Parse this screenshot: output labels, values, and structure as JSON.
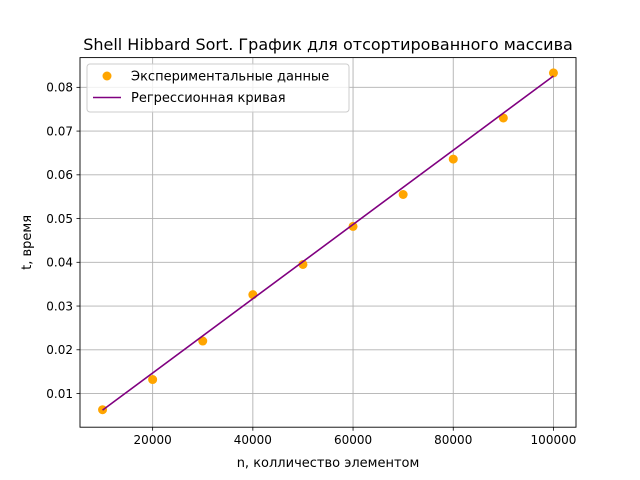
{
  "chart_data": {
    "type": "scatter",
    "title": "Shell Hibbard Sort. График для отсортированного массива",
    "xlabel": "n, колличество элементом",
    "ylabel": "t, время",
    "xlim": [
      5500,
      104500
    ],
    "ylim": [
      0.0023,
      0.0868
    ],
    "x_ticks": [
      20000,
      40000,
      60000,
      80000,
      100000
    ],
    "x_tick_labels": [
      "20000",
      "40000",
      "60000",
      "80000",
      "100000"
    ],
    "y_ticks": [
      0.01,
      0.02,
      0.03,
      0.04,
      0.05,
      0.06,
      0.07,
      0.08
    ],
    "y_tick_labels": [
      "0.01",
      "0.02",
      "0.03",
      "0.04",
      "0.05",
      "0.06",
      "0.07",
      "0.08"
    ],
    "grid": true,
    "legend_position": "top-left",
    "series": [
      {
        "name": "Экспериментальные данные",
        "kind": "scatter",
        "color": "#ffa500",
        "x": [
          10000,
          20000,
          30000,
          40000,
          50000,
          60000,
          70000,
          80000,
          90000,
          100000
        ],
        "y": [
          0.0063,
          0.0132,
          0.022,
          0.0326,
          0.0395,
          0.0482,
          0.0555,
          0.0636,
          0.073,
          0.0833
        ]
      },
      {
        "name": "Регрессионная кривая",
        "kind": "line",
        "color": "#800080",
        "x": [
          10000,
          100000
        ],
        "y": [
          0.0062,
          0.0826
        ]
      }
    ]
  }
}
